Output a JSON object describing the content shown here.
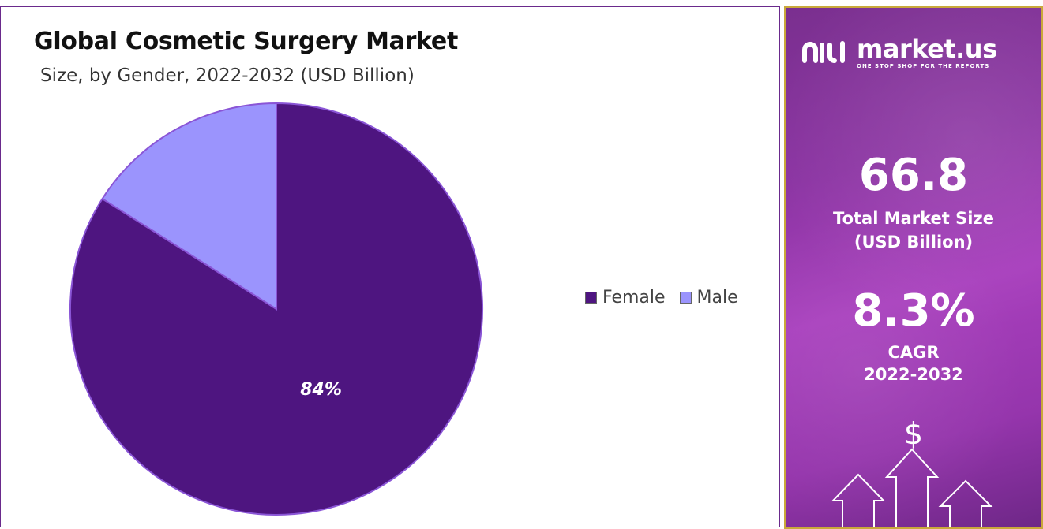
{
  "chart_data": {
    "type": "pie",
    "title": "Global Cosmetic Surgery Market",
    "subtitle": "Size, by Gender, 2022-2032",
    "unit": "(USD Billion)",
    "categories": [
      "Female",
      "Male"
    ],
    "values": [
      84,
      16
    ],
    "labels": [
      "84%",
      ""
    ],
    "colors": [
      "#4e1580",
      "#9b94fd"
    ],
    "legend_position": "right"
  },
  "brand": {
    "name": "market.us",
    "tagline": "ONE STOP SHOP FOR THE REPORTS"
  },
  "stats": {
    "market_size_value": "66.8",
    "market_size_label_line1": "Total Market Size",
    "market_size_label_line2": "(USD Billion)",
    "cagr_value": "8.3%",
    "cagr_label_line1": "CAGR",
    "cagr_label_line2": "2022-2032"
  },
  "icons": {
    "currency": "$"
  }
}
